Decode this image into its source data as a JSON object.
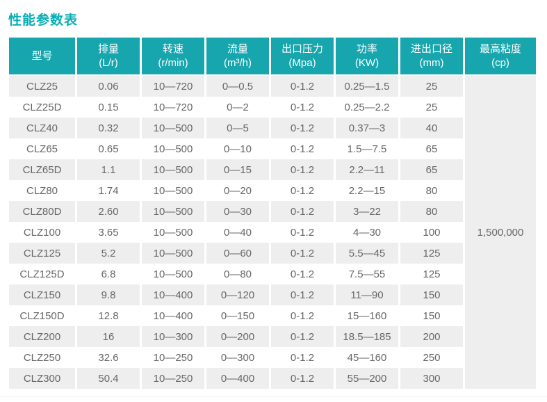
{
  "page": {
    "title": "性能参数表"
  },
  "chart_data": {
    "type": "table",
    "title": "性能参数表",
    "columns": [
      {
        "label": "型号",
        "unit": ""
      },
      {
        "label": "排量",
        "unit": "(L/r)"
      },
      {
        "label": "转速",
        "unit": "(r/min)"
      },
      {
        "label": "流量",
        "unit": "(m³/h)"
      },
      {
        "label": "出口压力",
        "unit": "(Mpa)"
      },
      {
        "label": "功率",
        "unit": "(KW)"
      },
      {
        "label": "进出口径",
        "unit": "(mm)"
      },
      {
        "label": "最高粘度",
        "unit": "(cp)"
      }
    ],
    "rows": [
      [
        "CLZ25",
        "0.06",
        "10—720",
        "0—0.5",
        "0-1.2",
        "0.25—1.5",
        "25"
      ],
      [
        "CLZ25D",
        "0.15",
        "10—720",
        "0—2",
        "0-1.2",
        "0.25—2.2",
        "25"
      ],
      [
        "CLZ40",
        "0.32",
        "10—500",
        "0—5",
        "0-1.2",
        "0.37—3",
        "40"
      ],
      [
        "CLZ65",
        "0.65",
        "10—500",
        "0—10",
        "0-1.2",
        "1.5—7.5",
        "65"
      ],
      [
        "CLZ65D",
        "1.1",
        "10—500",
        "0—15",
        "0-1.2",
        "2.2—11",
        "65"
      ],
      [
        "CLZ80",
        "1.74",
        "10—500",
        "0—20",
        "0-1.2",
        "2.2—15",
        "80"
      ],
      [
        "CLZ80D",
        "2.60",
        "10—500",
        "0—30",
        "0-1.2",
        "3—22",
        "80"
      ],
      [
        "CLZ100",
        "3.65",
        "10—500",
        "0—40",
        "0-1.2",
        "4—30",
        "100"
      ],
      [
        "CLZ125",
        "5.2",
        "10—500",
        "0—60",
        "0-1.2",
        "5.5—45",
        "125"
      ],
      [
        "CLZ125D",
        "6.8",
        "10—500",
        "0—80",
        "0-1.2",
        "7.5—55",
        "125"
      ],
      [
        "CLZ150",
        "9.8",
        "10—400",
        "0—120",
        "0-1.2",
        "11—90",
        "150"
      ],
      [
        "CLZ150D",
        "12.8",
        "10—400",
        "0—150",
        "0-1.2",
        "15—160",
        "150"
      ],
      [
        "CLZ200",
        "16",
        "10—300",
        "0—200",
        "0-1.2",
        "18.5—185",
        "200"
      ],
      [
        "CLZ250",
        "32.6",
        "10—250",
        "0—300",
        "0-1.2",
        "45—160",
        "250"
      ],
      [
        "CLZ300",
        "50.4",
        "10—250",
        "0—400",
        "0-1.2",
        "55—200",
        "300"
      ]
    ],
    "max_viscosity": "1,500,000",
    "layout": {
      "striped": true,
      "merged_last_column": true
    },
    "colors": {
      "accent_teal": "#17a6ae",
      "title_teal": "#0aadb5",
      "row_alt_gray": "#eeeeee",
      "body_text": "#666666",
      "header_text": "#ffffff"
    }
  }
}
